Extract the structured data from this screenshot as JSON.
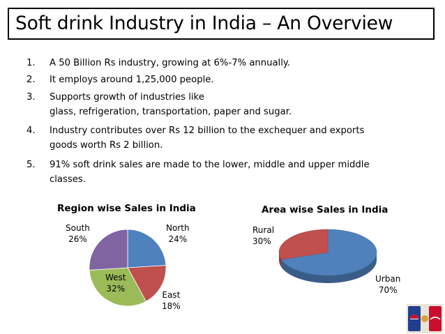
{
  "slide": {
    "title": "Soft drink Industry in India – An Overview",
    "points": [
      {
        "num": "1.",
        "lines": [
          "A 50 Billion Rs industry, growing at 6%-7% annually."
        ]
      },
      {
        "num": "2.",
        "lines": [
          "It employs around 1,25,000 people."
        ]
      },
      {
        "num": "3.",
        "lines": [
          "Supports growth of industries like",
          "glass, refrigeration, transportation, paper and sugar."
        ]
      },
      {
        "num": "4.",
        "lines": [
          "Industry contributes over Rs 12 billion to the exchequer and exports",
          "goods worth Rs 2 billion."
        ]
      },
      {
        "num": "5.",
        "lines": [
          "91% soft drink sales are made to the lower, middle and upper middle",
          "classes."
        ]
      }
    ]
  },
  "chart_data": [
    {
      "type": "pie",
      "title": "Region wise  Sales in India",
      "categories": [
        "North",
        "East",
        "West",
        "South"
      ],
      "values": [
        24,
        18,
        32,
        26
      ],
      "value_labels": [
        "24%",
        "18%",
        "32%",
        "26%"
      ],
      "colors": [
        "#4F81BD",
        "#C0504D",
        "#9BBB59",
        "#8064A2"
      ],
      "legend": "none"
    },
    {
      "type": "pie",
      "title": "Area wise Sales in India",
      "categories": [
        "Urban",
        "Rural"
      ],
      "values": [
        70,
        30
      ],
      "value_labels": [
        "70%",
        "30%"
      ],
      "colors": [
        "#4F81BD",
        "#C0504D"
      ],
      "legend": "none",
      "style": "3d"
    }
  ],
  "logo": {
    "icon": "pepsi-vs-coca-cola-logo",
    "colors": [
      "#1F3F8F",
      "#C8102E"
    ]
  }
}
